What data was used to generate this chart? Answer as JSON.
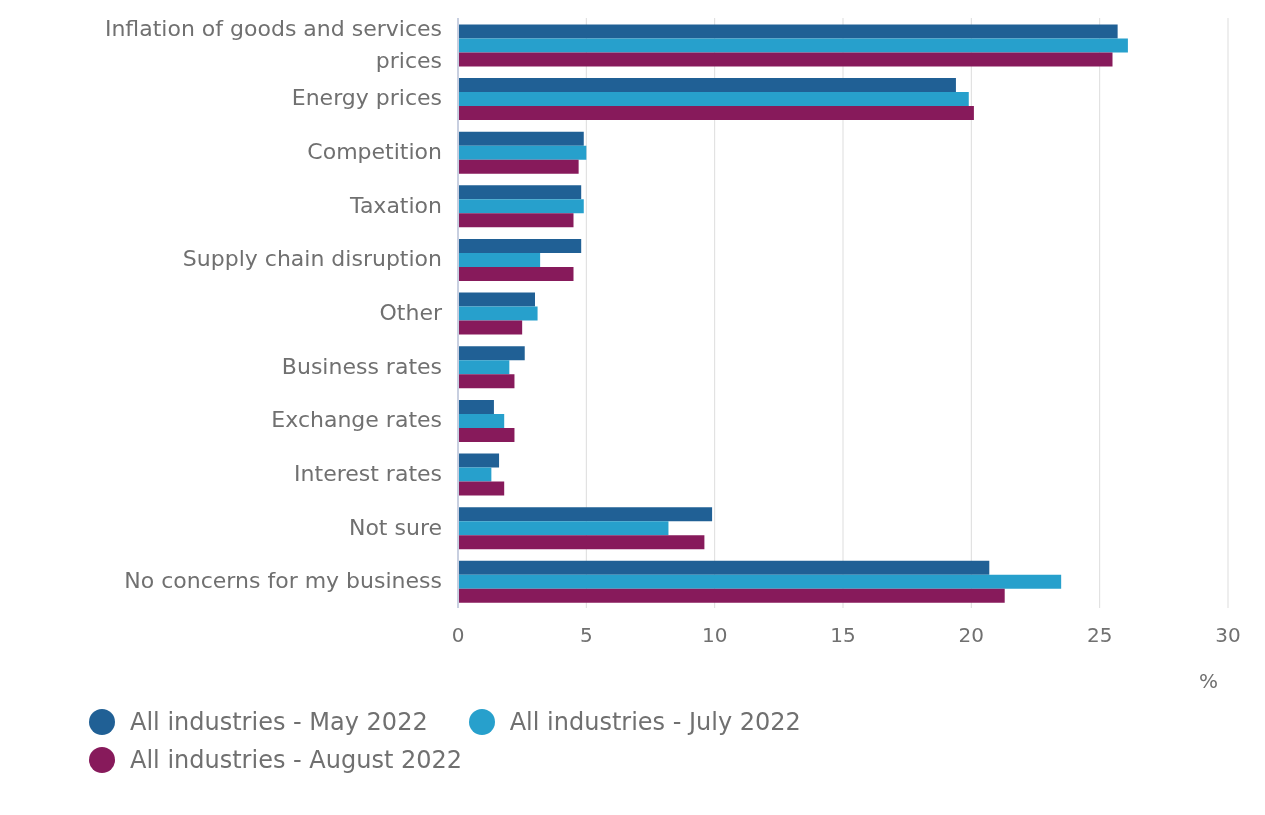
{
  "chart_data": {
    "type": "bar",
    "orientation": "horizontal",
    "xlabel": "%",
    "categories": [
      "Inflation of goods and services prices",
      "Energy prices",
      "Competition",
      "Taxation",
      "Supply chain disruption",
      "Other",
      "Business rates",
      "Exchange rates",
      "Interest rates",
      "Not sure",
      "No concerns for my business"
    ],
    "series": [
      {
        "name": "All industries - May 2022",
        "color": "#206095",
        "values": [
          25.7,
          19.4,
          4.9,
          4.8,
          4.8,
          3.0,
          2.6,
          1.4,
          1.6,
          9.9,
          20.7
        ]
      },
      {
        "name": "All industries - July 2022",
        "color": "#27a0cc",
        "values": [
          26.1,
          19.9,
          5.0,
          4.9,
          3.2,
          3.1,
          2.0,
          1.8,
          1.3,
          8.2,
          23.5
        ]
      },
      {
        "name": "All industries - August 2022",
        "color": "#871a5b",
        "values": [
          25.5,
          20.1,
          4.7,
          4.5,
          4.5,
          2.5,
          2.2,
          2.2,
          1.8,
          9.6,
          21.3
        ]
      }
    ],
    "xlim": [
      0,
      30
    ],
    "xticks": [
      0,
      5,
      10,
      15,
      20,
      25,
      30
    ],
    "grid": "x",
    "legend": "bottom"
  }
}
